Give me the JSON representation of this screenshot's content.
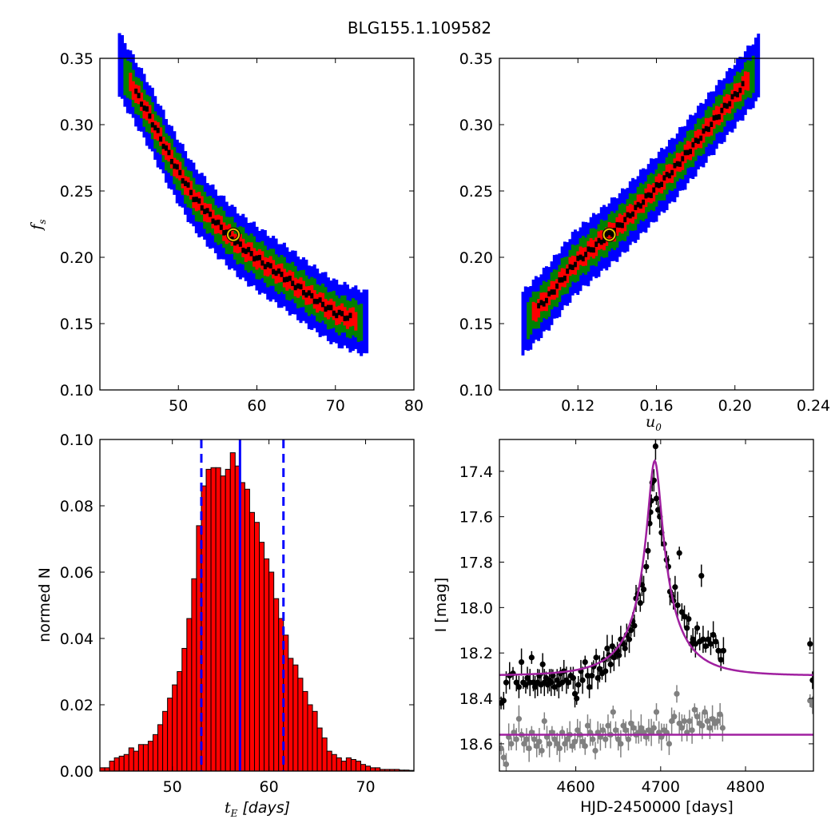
{
  "figure": {
    "title": "BLG155.1.109582"
  },
  "chart_data": [
    {
      "type": "heatmap",
      "name": "fs_vs_tE",
      "ylabel_main": "f",
      "ylabel_sub": "s",
      "xlim": [
        40,
        80
      ],
      "ylim": [
        0.1,
        0.35
      ],
      "xticks": [
        50,
        60,
        70,
        80
      ],
      "xtick_labels": [
        "50",
        "60",
        "70",
        "80"
      ],
      "yticks": [
        0.1,
        0.15,
        0.2,
        0.25,
        0.3,
        0.35
      ],
      "ytick_labels": [
        "0.10",
        "0.15",
        "0.20",
        "0.25",
        "0.30",
        "0.35"
      ],
      "confidence_colors": [
        "#000000",
        "#ff0000",
        "#008000",
        "#0000ff"
      ],
      "ridge": [
        [
          42.5,
          0.345
        ],
        [
          46,
          0.31
        ],
        [
          49,
          0.275
        ],
        [
          52,
          0.245
        ],
        [
          55,
          0.225
        ],
        [
          58,
          0.208
        ],
        [
          61,
          0.195
        ],
        [
          64,
          0.183
        ],
        [
          67,
          0.17
        ],
        [
          70,
          0.158
        ],
        [
          74,
          0.15
        ]
      ],
      "best_fit": {
        "x": 57.0,
        "y": 0.217
      }
    },
    {
      "type": "heatmap",
      "name": "fs_vs_u0",
      "xlabel_main": "u",
      "xlabel_sub": "0",
      "xlim": [
        0.08,
        0.24
      ],
      "ylim": [
        0.1,
        0.35
      ],
      "xticks": [
        0.12,
        0.16,
        0.2,
        0.24
      ],
      "xtick_labels": [
        "0.12",
        "0.16",
        "0.20",
        "0.24"
      ],
      "yticks": [
        0.1,
        0.15,
        0.2,
        0.25,
        0.3,
        0.35
      ],
      "ytick_labels": [
        "0.10",
        "0.15",
        "0.20",
        "0.25",
        "0.30",
        "0.35"
      ],
      "confidence_colors": [
        "#000000",
        "#ff0000",
        "#008000",
        "#0000ff"
      ],
      "ridge": [
        [
          0.092,
          0.15
        ],
        [
          0.105,
          0.17
        ],
        [
          0.118,
          0.195
        ],
        [
          0.13,
          0.21
        ],
        [
          0.142,
          0.225
        ],
        [
          0.155,
          0.245
        ],
        [
          0.168,
          0.265
        ],
        [
          0.182,
          0.29
        ],
        [
          0.196,
          0.315
        ],
        [
          0.212,
          0.343
        ]
      ],
      "best_fit": {
        "x": 0.136,
        "y": 0.217
      }
    },
    {
      "type": "bar",
      "name": "tE_histogram",
      "xlabel_main": "t",
      "xlabel_sub": "E",
      "xlabel_rest": " [days]",
      "ylabel": "normed N",
      "xlim": [
        42.5,
        75
      ],
      "ylim": [
        0,
        0.1
      ],
      "xticks": [
        50,
        60,
        70
      ],
      "xtick_labels": [
        "50",
        "60",
        "70"
      ],
      "yticks": [
        0.0,
        0.02,
        0.04,
        0.06,
        0.08,
        0.1
      ],
      "ytick_labels": [
        "0.00",
        "0.02",
        "0.04",
        "0.06",
        "0.08",
        "0.10"
      ],
      "bin_start": 42.5,
      "bin_width": 0.5,
      "values": [
        0.001,
        0.001,
        0.003,
        0.004,
        0.0045,
        0.005,
        0.007,
        0.006,
        0.008,
        0.008,
        0.009,
        0.011,
        0.014,
        0.018,
        0.022,
        0.026,
        0.03,
        0.037,
        0.046,
        0.058,
        0.074,
        0.086,
        0.091,
        0.0915,
        0.0915,
        0.089,
        0.091,
        0.096,
        0.092,
        0.087,
        0.085,
        0.078,
        0.075,
        0.069,
        0.064,
        0.06,
        0.052,
        0.046,
        0.041,
        0.034,
        0.032,
        0.028,
        0.024,
        0.02,
        0.018,
        0.013,
        0.01,
        0.006,
        0.005,
        0.004,
        0.003,
        0.004,
        0.0035,
        0.003,
        0.002,
        0.0015,
        0.001,
        0.001,
        0.0005,
        0.0005,
        0.0005,
        0.0005,
        0.0003,
        0.0003,
        0.0002
      ],
      "median": 57.0,
      "interval": [
        53.0,
        61.5
      ]
    },
    {
      "type": "scatter",
      "name": "light_curve",
      "xlabel": "HJD-2450000 [days]",
      "ylabel": "I [mag]",
      "xlim": [
        4510,
        4880
      ],
      "ylim": [
        18.72,
        17.26
      ],
      "xticks": [
        4600,
        4700,
        4800
      ],
      "xtick_labels": [
        "4600",
        "4700",
        "4800"
      ],
      "yticks": [
        17.4,
        17.6,
        17.8,
        18.0,
        18.2,
        18.4,
        18.6
      ],
      "ytick_labels": [
        "17.4",
        "17.6",
        "17.8",
        "18.0",
        "18.2",
        "18.4",
        "18.6"
      ],
      "series": [
        {
          "color": "#000000",
          "points": [
            [
              4512,
              18.42
            ],
            [
              4515,
              18.41
            ],
            [
              4518,
              18.33
            ],
            [
              4522,
              18.3
            ],
            [
              4526,
              18.29
            ],
            [
              4530,
              18.33
            ],
            [
              4533,
              18.35
            ],
            [
              4536,
              18.24
            ],
            [
              4538,
              18.33
            ],
            [
              4541,
              18.34
            ],
            [
              4543,
              18.31
            ],
            [
              4546,
              18.33
            ],
            [
              4548,
              18.22
            ],
            [
              4550,
              18.33
            ],
            [
              4552,
              18.35
            ],
            [
              4555,
              18.33
            ],
            [
              4557,
              18.3
            ],
            [
              4559,
              18.34
            ],
            [
              4561,
              18.25
            ],
            [
              4563,
              18.33
            ],
            [
              4565,
              18.31
            ],
            [
              4567,
              18.34
            ],
            [
              4569,
              18.32
            ],
            [
              4571,
              18.33
            ],
            [
              4573,
              18.3
            ],
            [
              4575,
              18.35
            ],
            [
              4578,
              18.32
            ],
            [
              4580,
              18.34
            ],
            [
              4582,
              18.29
            ],
            [
              4584,
              18.33
            ],
            [
              4586,
              18.28
            ],
            [
              4589,
              18.32
            ],
            [
              4591,
              18.33
            ],
            [
              4594,
              18.3
            ],
            [
              4597,
              18.31
            ],
            [
              4599,
              18.38
            ],
            [
              4601,
              18.4
            ],
            [
              4603,
              18.34
            ],
            [
              4606,
              18.28
            ],
            [
              4608,
              18.32
            ],
            [
              4611,
              18.24
            ],
            [
              4614,
              18.3
            ],
            [
              4616,
              18.35
            ],
            [
              4619,
              18.3
            ],
            [
              4621,
              18.26
            ],
            [
              4624,
              18.22
            ],
            [
              4626,
              18.31
            ],
            [
              4628,
              18.27
            ],
            [
              4631,
              18.29
            ],
            [
              4633,
              18.23
            ],
            [
              4635,
              18.28
            ],
            [
              4637,
              18.18
            ],
            [
              4639,
              18.21
            ],
            [
              4641,
              18.25
            ],
            [
              4643,
              18.17
            ],
            [
              4645,
              18.22
            ],
            [
              4647,
              18.2
            ],
            [
              4649,
              18.19
            ],
            [
              4651,
              18.21
            ],
            [
              4653,
              18.14
            ],
            [
              4656,
              18.16
            ],
            [
              4658,
              18.18
            ],
            [
              4660,
              18.12
            ],
            [
              4663,
              18.14
            ],
            [
              4665,
              18.1
            ],
            [
              4667,
              18.06
            ],
            [
              4669,
              18.08
            ],
            [
              4671,
              17.96
            ],
            [
              4673,
              17.94
            ],
            [
              4676,
              17.98
            ],
            [
              4678,
              17.9
            ],
            [
              4680,
              17.92
            ],
            [
              4683,
              17.82
            ],
            [
              4685,
              17.75
            ],
            [
              4687,
              17.63
            ],
            [
              4688,
              17.58
            ],
            [
              4689,
              17.53
            ],
            [
              4690,
              17.45
            ],
            [
              4692,
              17.44
            ],
            [
              4694,
              17.29
            ],
            [
              4695,
              17.52
            ],
            [
              4697,
              17.57
            ],
            [
              4699,
              17.6
            ],
            [
              4701,
              17.67
            ],
            [
              4704,
              17.72
            ],
            [
              4707,
              17.79
            ],
            [
              4709,
              17.82
            ],
            [
              4711,
              17.93
            ],
            [
              4713,
              17.95
            ],
            [
              4715,
              17.97
            ],
            [
              4717,
              17.91
            ],
            [
              4720,
              17.99
            ],
            [
              4722,
              17.76
            ],
            [
              4725,
              18.02
            ],
            [
              4728,
              18.04
            ],
            [
              4731,
              18.09
            ],
            [
              4733,
              18.05
            ],
            [
              4736,
              18.16
            ],
            [
              4738,
              18.14
            ],
            [
              4741,
              18.16
            ],
            [
              4743,
              18.09
            ],
            [
              4746,
              18.15
            ],
            [
              4748,
              17.86
            ],
            [
              4750,
              18.14
            ],
            [
              4753,
              18.17
            ],
            [
              4756,
              18.14
            ],
            [
              4759,
              18.16
            ],
            [
              4762,
              18.12
            ],
            [
              4765,
              18.15
            ],
            [
              4768,
              18.19
            ],
            [
              4771,
              18.23
            ],
            [
              4774,
              18.19
            ],
            [
              4876,
              18.16
            ],
            [
              4879,
              18.32
            ]
          ]
        },
        {
          "color": "#808080",
          "points": [
            [
              4512,
              18.62
            ],
            [
              4515,
              18.66
            ],
            [
              4518,
              18.69
            ],
            [
              4521,
              18.57
            ],
            [
              4524,
              18.6
            ],
            [
              4527,
              18.55
            ],
            [
              4530,
              18.58
            ],
            [
              4533,
              18.49
            ],
            [
              4536,
              18.56
            ],
            [
              4539,
              18.6
            ],
            [
              4542,
              18.58
            ],
            [
              4545,
              18.62
            ],
            [
              4548,
              18.55
            ],
            [
              4551,
              18.58
            ],
            [
              4554,
              18.61
            ],
            [
              4557,
              18.59
            ],
            [
              4560,
              18.63
            ],
            [
              4563,
              18.5
            ],
            [
              4566,
              18.57
            ],
            [
              4569,
              18.6
            ],
            [
              4572,
              18.55
            ],
            [
              4575,
              18.58
            ],
            [
              4578,
              18.6
            ],
            [
              4581,
              18.62
            ],
            [
              4584,
              18.55
            ],
            [
              4587,
              18.6
            ],
            [
              4590,
              18.58
            ],
            [
              4593,
              18.56
            ],
            [
              4596,
              18.61
            ],
            [
              4599,
              18.59
            ],
            [
              4602,
              18.54
            ],
            [
              4605,
              18.56
            ],
            [
              4608,
              18.59
            ],
            [
              4611,
              18.61
            ],
            [
              4614,
              18.52
            ],
            [
              4617,
              18.55
            ],
            [
              4620,
              18.58
            ],
            [
              4623,
              18.63
            ],
            [
              4626,
              18.55
            ],
            [
              4629,
              18.57
            ],
            [
              4632,
              18.54
            ],
            [
              4635,
              18.58
            ],
            [
              4638,
              18.52
            ],
            [
              4641,
              18.56
            ],
            [
              4644,
              18.46
            ],
            [
              4647,
              18.54
            ],
            [
              4650,
              18.58
            ],
            [
              4653,
              18.6
            ],
            [
              4656,
              18.52
            ],
            [
              4659,
              18.54
            ],
            [
              4662,
              18.58
            ],
            [
              4665,
              18.51
            ],
            [
              4668,
              18.53
            ],
            [
              4671,
              18.56
            ],
            [
              4674,
              18.55
            ],
            [
              4677,
              18.53
            ],
            [
              4680,
              18.55
            ],
            [
              4683,
              18.57
            ],
            [
              4686,
              18.54
            ],
            [
              4689,
              18.55
            ],
            [
              4692,
              18.53
            ],
            [
              4695,
              18.46
            ],
            [
              4698,
              18.55
            ],
            [
              4701,
              18.57
            ],
            [
              4704,
              18.54
            ],
            [
              4707,
              18.55
            ],
            [
              4710,
              18.6
            ],
            [
              4713,
              18.5
            ],
            [
              4716,
              18.48
            ],
            [
              4719,
              18.38
            ],
            [
              4722,
              18.51
            ],
            [
              4725,
              18.53
            ],
            [
              4728,
              18.5
            ],
            [
              4731,
              18.55
            ],
            [
              4734,
              18.5
            ],
            [
              4737,
              18.54
            ],
            [
              4740,
              18.45
            ],
            [
              4743,
              18.48
            ],
            [
              4746,
              18.51
            ],
            [
              4749,
              18.52
            ],
            [
              4752,
              18.46
            ],
            [
              4755,
              18.5
            ],
            [
              4758,
              18.53
            ],
            [
              4761,
              18.49
            ],
            [
              4764,
              18.51
            ],
            [
              4767,
              18.5
            ],
            [
              4770,
              18.47
            ],
            [
              4773,
              18.53
            ],
            [
              4876,
              18.41
            ],
            [
              4879,
              18.43
            ]
          ]
        }
      ],
      "model_color": "#a020a0",
      "model": {
        "t0": 4693,
        "u0": 0.136,
        "tE": 57,
        "fs": 0.217,
        "Ibase": 18.3,
        "faint_level": 18.56
      }
    }
  ]
}
